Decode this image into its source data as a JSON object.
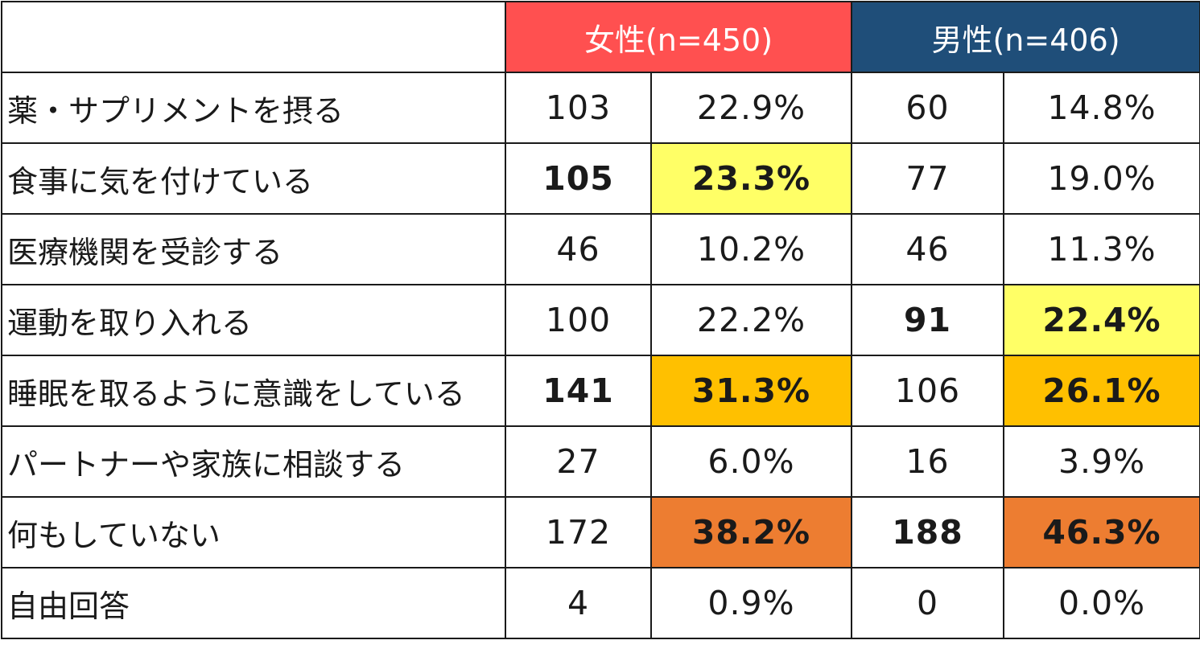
{
  "chart_data": {
    "type": "table",
    "columns": [
      {
        "group": "女性(n=450)",
        "group_color": "#ff5050"
      },
      {
        "group": "男性(n=406)",
        "group_color": "#1f4e79"
      }
    ],
    "rows": [
      {
        "label": "薬・サプリメントを摂る",
        "female_count": "103",
        "female_pct": "22.9%",
        "male_count": "60",
        "male_pct": "14.8%",
        "female_bold": false,
        "male_bold": false,
        "female_highlight": "",
        "male_highlight": ""
      },
      {
        "label": "食事に気を付けている",
        "female_count": "105",
        "female_pct": "23.3%",
        "male_count": "77",
        "male_pct": "19.0%",
        "female_bold": true,
        "male_bold": false,
        "female_highlight": "#ffff66",
        "male_highlight": ""
      },
      {
        "label": "医療機関を受診する",
        "female_count": "46",
        "female_pct": "10.2%",
        "male_count": "46",
        "male_pct": "11.3%",
        "female_bold": false,
        "male_bold": false,
        "female_highlight": "",
        "male_highlight": ""
      },
      {
        "label": "運動を取り入れる",
        "female_count": "100",
        "female_pct": "22.2%",
        "male_count": "91",
        "male_pct": "22.4%",
        "female_bold": false,
        "male_bold": true,
        "female_highlight": "",
        "male_highlight": "#ffff66"
      },
      {
        "label": "睡眠を取るように意識をしている",
        "female_count": "141",
        "female_pct": "31.3%",
        "male_count": "106",
        "male_pct": "26.1%",
        "female_bold": true,
        "male_bold": false,
        "female_highlight": "#ffc000",
        "male_highlight": "#ffc000",
        "male_pct_bold": true
      },
      {
        "label": "パートナーや家族に相談する",
        "female_count": "27",
        "female_pct": "6.0%",
        "male_count": "16",
        "male_pct": "3.9%",
        "female_bold": false,
        "male_bold": false,
        "female_highlight": "",
        "male_highlight": ""
      },
      {
        "label": "何もしていない",
        "female_count": "172",
        "female_pct": "38.2%",
        "male_count": "188",
        "male_pct": "46.3%",
        "female_bold": false,
        "male_bold": true,
        "female_highlight": "#ed7d31",
        "male_highlight": "#ed7d31",
        "female_pct_bold": true
      },
      {
        "label": "自由回答",
        "female_count": "4",
        "female_pct": "0.9%",
        "male_count": "0",
        "male_pct": "0.0%",
        "female_bold": false,
        "male_bold": false,
        "female_highlight": "",
        "male_highlight": ""
      }
    ]
  }
}
